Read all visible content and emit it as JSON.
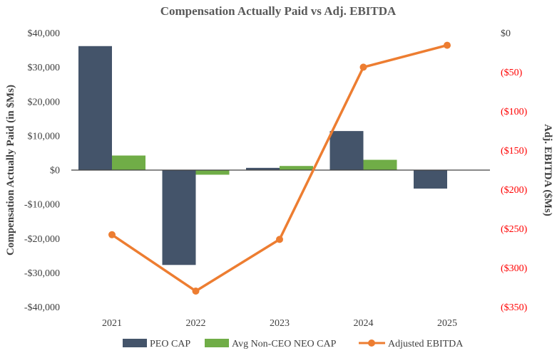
{
  "chart_data": {
    "type": "bar+line",
    "title": "Compensation Actually Paid vs Adj. EBITDA",
    "categories": [
      "2021",
      "2022",
      "2023",
      "2024",
      "2025"
    ],
    "y_left": {
      "label": "Compensation Actually Paid  (in $Ms)",
      "lim": [
        -40000,
        40000
      ],
      "ticks": [
        40000,
        30000,
        20000,
        10000,
        0,
        -10000,
        -20000,
        -30000,
        -40000
      ],
      "tick_labels": [
        "$40,000",
        "$30,000",
        "$20,000",
        "$10,000",
        "$0",
        "-$10,000",
        "-$20,000",
        "-$30,000",
        "-$40,000"
      ]
    },
    "y_right": {
      "label": "Adj. EBITDA ($Ms)",
      "lim": [
        -350,
        0
      ],
      "ticks": [
        0,
        -50,
        -100,
        -150,
        -200,
        -250,
        -300,
        -350
      ],
      "tick_labels": [
        "$0",
        "($50)",
        "($100)",
        "($150)",
        "($200)",
        "($250)",
        "($300)",
        "($350)"
      ],
      "negative_label_color": "#ff0000"
    },
    "series": [
      {
        "name": "PEO CAP",
        "type": "bar",
        "axis": "left",
        "color": "#44546a",
        "values": [
          36100,
          -27800,
          550,
          11300,
          -5500
        ]
      },
      {
        "name": "Avg Non-CEO NEO CAP",
        "type": "bar",
        "axis": "left",
        "color": "#70ad47",
        "values": [
          4150,
          -1450,
          1100,
          2900,
          0
        ]
      },
      {
        "name": "Adjusted EBITDA",
        "type": "line",
        "axis": "right",
        "color": "#ed7d31",
        "values": [
          -258,
          -330,
          -264,
          -44,
          -16
        ]
      }
    ],
    "grid": false,
    "legend": "bottom"
  }
}
